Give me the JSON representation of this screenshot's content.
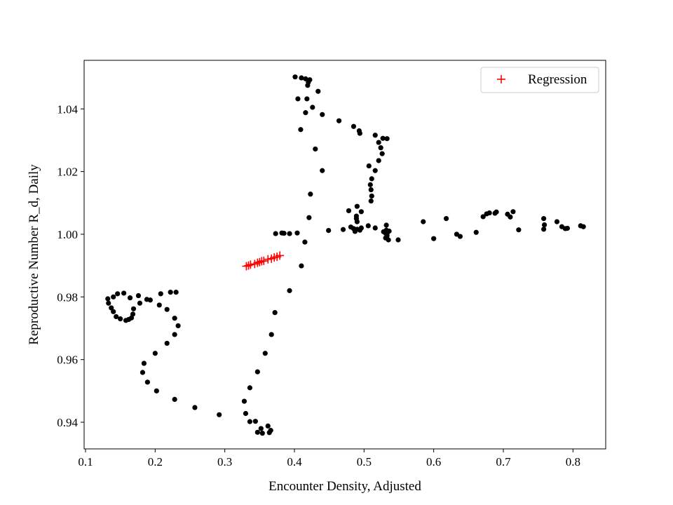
{
  "chart_data": {
    "type": "scatter",
    "xlabel": "Encounter Density, Adjusted",
    "ylabel": "Reproductive Number R_d, Daily",
    "xlim": [
      0.098,
      0.847
    ],
    "ylim": [
      0.9315,
      1.0555
    ],
    "xticks": [
      0.1,
      0.2,
      0.3,
      0.4,
      0.5,
      0.6,
      0.7,
      0.8
    ],
    "yticks": [
      0.94,
      0.96,
      0.98,
      1.0,
      1.02,
      1.04
    ],
    "xtick_labels": [
      "0.1",
      "0.2",
      "0.3",
      "0.4",
      "0.5",
      "0.6",
      "0.7",
      "0.8"
    ],
    "ytick_labels": [
      "0.94",
      "0.96",
      "0.98",
      "1.00",
      "1.02",
      "1.04"
    ],
    "grid": false,
    "legend": {
      "position": "top-right",
      "entries": [
        "Regression"
      ]
    },
    "series": [
      {
        "marker": "dot",
        "color": "#000000",
        "points": [
          [
            0.132,
            0.9794
          ],
          [
            0.133,
            0.978
          ],
          [
            0.137,
            0.9765
          ],
          [
            0.14,
            0.9753
          ],
          [
            0.144,
            0.9737
          ],
          [
            0.15,
            0.973
          ],
          [
            0.158,
            0.9725
          ],
          [
            0.162,
            0.9728
          ],
          [
            0.166,
            0.9733
          ],
          [
            0.168,
            0.9745
          ],
          [
            0.169,
            0.9762
          ],
          [
            0.164,
            0.9797
          ],
          [
            0.155,
            0.9812
          ],
          [
            0.146,
            0.981
          ],
          [
            0.14,
            0.98
          ],
          [
            0.176,
            0.9804
          ],
          [
            0.178,
            0.978
          ],
          [
            0.188,
            0.9792
          ],
          [
            0.193,
            0.979
          ],
          [
            0.208,
            0.981
          ],
          [
            0.206,
            0.9774
          ],
          [
            0.222,
            0.9815
          ],
          [
            0.23,
            0.9815
          ],
          [
            0.217,
            0.976
          ],
          [
            0.228,
            0.9732
          ],
          [
            0.233,
            0.9708
          ],
          [
            0.228,
            0.968
          ],
          [
            0.217,
            0.9652
          ],
          [
            0.2,
            0.962
          ],
          [
            0.184,
            0.9588
          ],
          [
            0.182,
            0.9559
          ],
          [
            0.189,
            0.9528
          ],
          [
            0.202,
            0.95
          ],
          [
            0.228,
            0.9473
          ],
          [
            0.257,
            0.9447
          ],
          [
            0.292,
            0.9424
          ],
          [
            0.328,
            0.9467
          ],
          [
            0.33,
            0.9428
          ],
          [
            0.336,
            0.9402
          ],
          [
            0.344,
            0.9403
          ],
          [
            0.347,
            0.9368
          ],
          [
            0.352,
            0.938
          ],
          [
            0.354,
            0.9365
          ],
          [
            0.362,
            0.9388
          ],
          [
            0.366,
            0.9374
          ],
          [
            0.364,
            0.9367
          ],
          [
            0.336,
            0.951
          ],
          [
            0.347,
            0.9561
          ],
          [
            0.358,
            0.962
          ],
          [
            0.367,
            0.968
          ],
          [
            0.372,
            0.975
          ],
          [
            0.393,
            0.982
          ],
          [
            0.41,
            0.9899
          ],
          [
            0.415,
            0.9975
          ],
          [
            0.373,
            1.0002
          ],
          [
            0.382,
            1.0004
          ],
          [
            0.385,
            1.0003
          ],
          [
            0.393,
            1.0002
          ],
          [
            0.404,
            1.0004
          ],
          [
            0.421,
            1.0053
          ],
          [
            0.423,
            1.0128
          ],
          [
            0.43,
            1.0272
          ],
          [
            0.44,
            1.0203
          ],
          [
            0.409,
            1.0334
          ],
          [
            0.416,
            1.0388
          ],
          [
            0.426,
            1.0405
          ],
          [
            0.44,
            1.0382
          ],
          [
            0.418,
            1.0432
          ],
          [
            0.405,
            1.0432
          ],
          [
            0.434,
            1.0456
          ],
          [
            0.419,
            1.0475
          ],
          [
            0.42,
            1.0485
          ],
          [
            0.416,
            1.0496
          ],
          [
            0.422,
            1.0493
          ],
          [
            0.41,
            1.0499
          ],
          [
            0.401,
            1.0502
          ],
          [
            0.464,
            1.0362
          ],
          [
            0.485,
            1.0344
          ],
          [
            0.493,
            1.033
          ],
          [
            0.494,
            1.0322
          ],
          [
            0.516,
            1.0316
          ],
          [
            0.521,
            1.0293
          ],
          [
            0.527,
            1.0306
          ],
          [
            0.533,
            1.0305
          ],
          [
            0.524,
            1.0276
          ],
          [
            0.526,
            1.0257
          ],
          [
            0.521,
            1.0235
          ],
          [
            0.516,
            1.0203
          ],
          [
            0.507,
            1.0218
          ],
          [
            0.511,
            1.0177
          ],
          [
            0.509,
            1.0158
          ],
          [
            0.51,
            1.0142
          ],
          [
            0.511,
            1.0122
          ],
          [
            0.51,
            1.0106
          ],
          [
            0.449,
            1.0012
          ],
          [
            0.47,
            1.0015
          ],
          [
            0.481,
            1.0023
          ],
          [
            0.485,
            1.0018
          ],
          [
            0.487,
            1.0009
          ],
          [
            0.49,
            1.0016
          ],
          [
            0.494,
            1.0013
          ],
          [
            0.496,
            1.002
          ],
          [
            0.506,
            1.0027
          ],
          [
            0.516,
            1.002
          ],
          [
            0.496,
            1.0072
          ],
          [
            0.49,
            1.0089
          ],
          [
            0.478,
            1.0075
          ],
          [
            0.489,
            1.0058
          ],
          [
            0.489,
            1.005
          ],
          [
            0.49,
            1.004
          ],
          [
            0.528,
            1.0008
          ],
          [
            0.531,
            1.0003
          ],
          [
            0.532,
            1.0013
          ],
          [
            0.532,
            1.0029
          ],
          [
            0.533,
            0.9995
          ],
          [
            0.531,
            0.9988
          ],
          [
            0.535,
            0.9982
          ],
          [
            0.536,
            1.001
          ],
          [
            0.533,
            1.0002
          ],
          [
            0.549,
            0.9982
          ],
          [
            0.585,
            1.004
          ],
          [
            0.6,
            0.9986
          ],
          [
            0.618,
            1.005
          ],
          [
            0.633,
            1.0
          ],
          [
            0.638,
            0.9993
          ],
          [
            0.661,
            1.0006
          ],
          [
            0.671,
            1.0056
          ],
          [
            0.676,
            1.0065
          ],
          [
            0.68,
            1.0068
          ],
          [
            0.688,
            1.0067
          ],
          [
            0.69,
            1.0071
          ],
          [
            0.706,
            1.0064
          ],
          [
            0.71,
            1.0055
          ],
          [
            0.714,
            1.0072
          ],
          [
            0.722,
            1.0014
          ],
          [
            0.758,
            1.005
          ],
          [
            0.759,
            1.003
          ],
          [
            0.758,
            1.0016
          ],
          [
            0.777,
            1.004
          ],
          [
            0.784,
            1.0024
          ],
          [
            0.789,
            1.0018
          ],
          [
            0.792,
            1.0019
          ],
          [
            0.811,
            1.0027
          ],
          [
            0.815,
            1.0024
          ]
        ]
      },
      {
        "name": "Regression",
        "marker": "plus",
        "color": "#ff0000",
        "points": [
          [
            0.331,
            0.9898
          ],
          [
            0.334,
            0.99
          ],
          [
            0.337,
            0.9903
          ],
          [
            0.343,
            0.9905
          ],
          [
            0.347,
            0.9909
          ],
          [
            0.35,
            0.9911
          ],
          [
            0.353,
            0.9914
          ],
          [
            0.356,
            0.9915
          ],
          [
            0.362,
            0.992
          ],
          [
            0.367,
            0.9922
          ],
          [
            0.371,
            0.9926
          ],
          [
            0.375,
            0.9928
          ],
          [
            0.379,
            0.9932
          ]
        ]
      }
    ]
  }
}
